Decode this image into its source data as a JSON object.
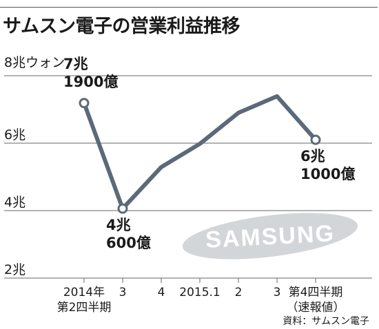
{
  "chart_data": {
    "type": "line",
    "title": "サムスン電子の営業利益推移",
    "y_unit_label": "8兆ウォン",
    "y_tick_labels": [
      "2兆",
      "4兆",
      "6兆"
    ],
    "ylim": [
      2,
      8
    ],
    "grid": "horizontal",
    "categories": [
      [
        "2014年",
        "第2四半期"
      ],
      [
        "3"
      ],
      [
        "4"
      ],
      [
        "2015.1"
      ],
      [
        "2"
      ],
      [
        "3"
      ],
      [
        "第4四半期",
        "（速報値）"
      ]
    ],
    "series": [
      {
        "values": [
          7.19,
          4.06,
          5.29,
          5.98,
          6.9,
          7.39,
          6.1
        ],
        "color": "#5b6a7a"
      }
    ],
    "annotations": [
      {
        "index": 0,
        "lines": [
          "7兆",
          "1900億"
        ]
      },
      {
        "index": 1,
        "lines": [
          "4兆",
          "600億"
        ]
      },
      {
        "index": 6,
        "lines": [
          "6兆",
          "1000億"
        ]
      }
    ],
    "watermark": "SAMSUNG",
    "source": "資料：サムスン電子"
  }
}
